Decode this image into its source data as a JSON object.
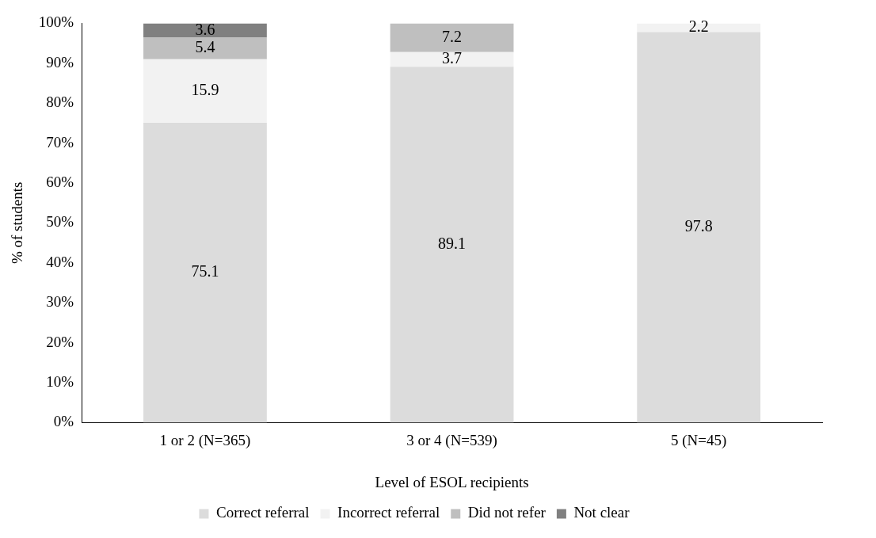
{
  "chart_data": {
    "type": "bar",
    "stacked": true,
    "xlabel": "Level of ESOL recipients",
    "ylabel": "% of students",
    "categories": [
      "1 or 2 (N=365)",
      "3 or 4 (N=539)",
      "5 (N=45)"
    ],
    "series": [
      {
        "name": "Correct referral",
        "color": "#dcdcdc",
        "values": [
          75.1,
          89.1,
          97.8
        ]
      },
      {
        "name": "Incorrect referral",
        "color": "#f2f2f2",
        "values": [
          15.9,
          3.7,
          2.2
        ]
      },
      {
        "name": "Did not refer",
        "color": "#bfbfbf",
        "values": [
          5.4,
          7.2,
          null
        ]
      },
      {
        "name": "Not clear",
        "color": "#808080",
        "values": [
          3.6,
          null,
          null
        ]
      }
    ],
    "ylim": [
      0,
      100
    ],
    "yticks": [
      {
        "value": 0,
        "label": "0%"
      },
      {
        "value": 10,
        "label": "10%"
      },
      {
        "value": 20,
        "label": "20%"
      },
      {
        "value": 30,
        "label": "30%"
      },
      {
        "value": 40,
        "label": "40%"
      },
      {
        "value": 50,
        "label": "50%"
      },
      {
        "value": 60,
        "label": "60%"
      },
      {
        "value": 70,
        "label": "70%"
      },
      {
        "value": 80,
        "label": "80%"
      },
      {
        "value": 90,
        "label": "90%"
      },
      {
        "value": 100,
        "label": "100%"
      }
    ],
    "grid": false,
    "legend": "bottom",
    "data_labels": true
  }
}
